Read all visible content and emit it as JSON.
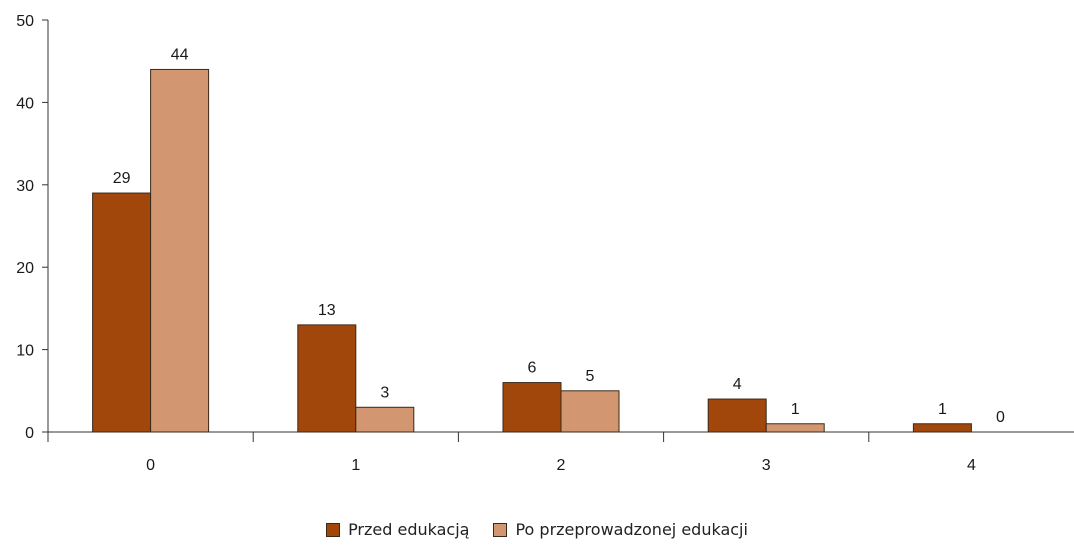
{
  "chart_data": {
    "type": "bar",
    "categories": [
      "0",
      "1",
      "2",
      "3",
      "4"
    ],
    "series": [
      {
        "name": "Przed edukacją",
        "values": [
          29,
          13,
          6,
          4,
          1
        ],
        "color": "#A2470C"
      },
      {
        "name": "Po przeprowadzonej edukacji",
        "values": [
          44,
          3,
          5,
          1,
          0
        ],
        "color": "#D29670"
      }
    ],
    "data_labels": [
      [
        "29",
        "13",
        "6",
        "4",
        "1"
      ],
      [
        "44",
        "3",
        "5",
        "1",
        "0"
      ]
    ],
    "yticks": [
      "0",
      "10",
      "20",
      "30",
      "40",
      "50"
    ],
    "ylim": [
      0,
      50
    ],
    "grid": false,
    "legend_position": "bottom-center"
  }
}
